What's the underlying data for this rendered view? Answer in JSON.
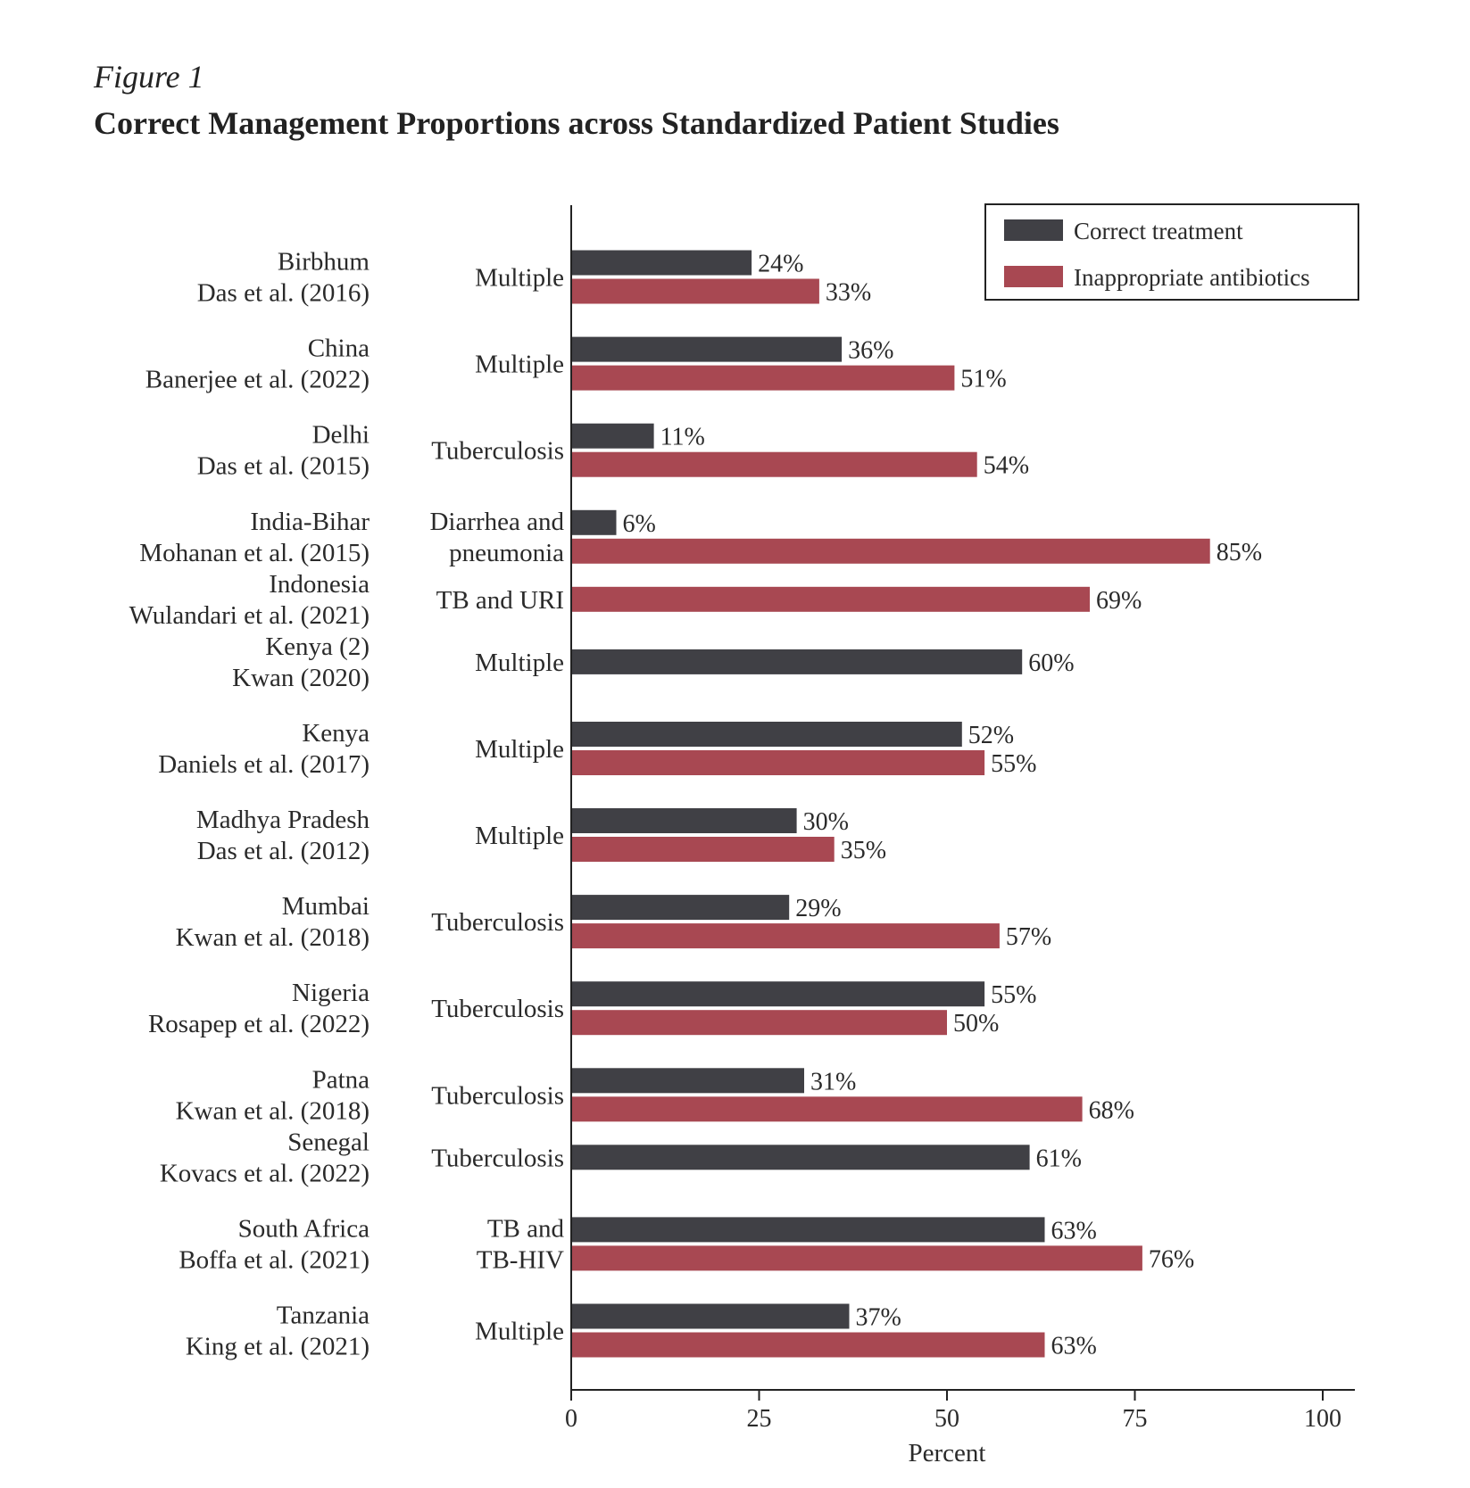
{
  "figure_label": "Figure 1",
  "chart_data": {
    "type": "bar",
    "orientation": "horizontal",
    "title": "Correct Management Proportions across Standardized Patient Studies",
    "xlabel": "Percent",
    "xlim": [
      0,
      100
    ],
    "xticks": [
      "0",
      "25",
      "50",
      "75",
      "100"
    ],
    "legend_position": "top-right",
    "grid": false,
    "series": [
      {
        "name": "Correct treatment",
        "color": "#404045"
      },
      {
        "name": "Inappropriate antibiotics",
        "color": "#a84852"
      }
    ],
    "categories": [
      {
        "place": "Birbhum",
        "study": "Das et al. (2016)",
        "condition": [
          "Multiple"
        ],
        "values": [
          24,
          33
        ],
        "labels": [
          "24%",
          "33%"
        ]
      },
      {
        "place": "China",
        "study": "Banerjee et al. (2022)",
        "condition": [
          "Multiple"
        ],
        "values": [
          36,
          51
        ],
        "labels": [
          "36%",
          "51%"
        ]
      },
      {
        "place": "Delhi",
        "study": "Das et al. (2015)",
        "condition": [
          "Tuberculosis"
        ],
        "values": [
          11,
          54
        ],
        "labels": [
          "11%",
          "54%"
        ]
      },
      {
        "place": "India-Bihar",
        "study": "Mohanan et al. (2015)",
        "condition": [
          "Diarrhea and",
          "pneumonia"
        ],
        "values": [
          6,
          85
        ],
        "labels": [
          "6%",
          "85%"
        ]
      },
      {
        "place": "Indonesia",
        "study": "Wulandari et al. (2021)",
        "condition": [
          "TB and URI"
        ],
        "values": [
          null,
          69
        ],
        "labels": [
          "",
          "69%"
        ]
      },
      {
        "place": "Kenya (2)",
        "study": "Kwan (2020)",
        "condition": [
          "Multiple"
        ],
        "values": [
          60,
          null
        ],
        "labels": [
          "60%",
          ""
        ]
      },
      {
        "place": "Kenya",
        "study": "Daniels et al. (2017)",
        "condition": [
          "Multiple"
        ],
        "values": [
          52,
          55
        ],
        "labels": [
          "52%",
          "55%"
        ]
      },
      {
        "place": "Madhya Pradesh",
        "study": "Das et al. (2012)",
        "condition": [
          "Multiple"
        ],
        "values": [
          30,
          35
        ],
        "labels": [
          "30%",
          "35%"
        ]
      },
      {
        "place": "Mumbai",
        "study": "Kwan et al. (2018)",
        "condition": [
          "Tuberculosis"
        ],
        "values": [
          29,
          57
        ],
        "labels": [
          "29%",
          "57%"
        ]
      },
      {
        "place": "Nigeria",
        "study": "Rosapep et al. (2022)",
        "condition": [
          "Tuberculosis"
        ],
        "values": [
          55,
          50
        ],
        "labels": [
          "55%",
          "50%"
        ]
      },
      {
        "place": "Patna",
        "study": "Kwan et al. (2018)",
        "condition": [
          "Tuberculosis"
        ],
        "values": [
          31,
          68
        ],
        "labels": [
          "31%",
          "68%"
        ]
      },
      {
        "place": "Senegal",
        "study": "Kovacs et al. (2022)",
        "condition": [
          "Tuberculosis"
        ],
        "values": [
          61,
          null
        ],
        "labels": [
          "61%",
          ""
        ]
      },
      {
        "place": "South Africa",
        "study": "Boffa et al. (2021)",
        "condition": [
          "TB and",
          "TB-HIV"
        ],
        "values": [
          63,
          76
        ],
        "labels": [
          "63%",
          "76%"
        ]
      },
      {
        "place": "Tanzania",
        "study": "King et al. (2021)",
        "condition": [
          "Multiple"
        ],
        "values": [
          37,
          63
        ],
        "labels": [
          "37%",
          "63%"
        ]
      }
    ]
  }
}
